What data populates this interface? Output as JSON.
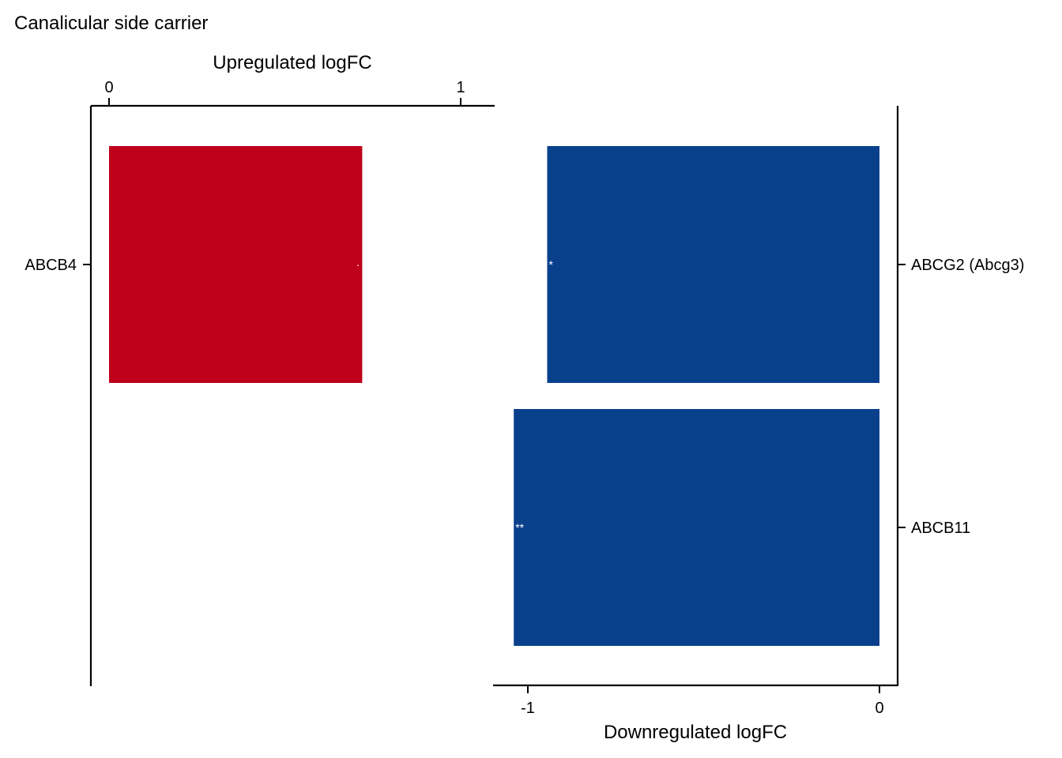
{
  "chart_data": [
    {
      "type": "bar",
      "orientation": "horizontal",
      "panel": "upregulated",
      "title": "Canalicular side carrier",
      "xlabel": "Upregulated logFC",
      "x_axis_position": "top",
      "xlim": [
        -0.05,
        1.1
      ],
      "xticks": [
        0,
        1
      ],
      "xtick_labels": [
        "0",
        "1"
      ],
      "y_axis_position": "left",
      "categories": [
        "ABCB4"
      ],
      "values": [
        0.72
      ],
      "significance": [
        "·"
      ],
      "color": "#be001b",
      "grid": false
    },
    {
      "type": "bar",
      "orientation": "horizontal",
      "panel": "downregulated",
      "xlabel": "Downregulated logFC",
      "x_axis_position": "bottom",
      "xlim": [
        -1.1,
        0.05
      ],
      "xticks": [
        -1,
        0
      ],
      "xtick_labels": [
        "-1",
        "0"
      ],
      "y_axis_position": "right",
      "categories": [
        "ABCG2 (Abcg3)",
        "ABCB11"
      ],
      "values": [
        -0.945,
        -1.04
      ],
      "significance": [
        "*",
        "**"
      ],
      "color": "#09408c",
      "grid": false
    }
  ]
}
